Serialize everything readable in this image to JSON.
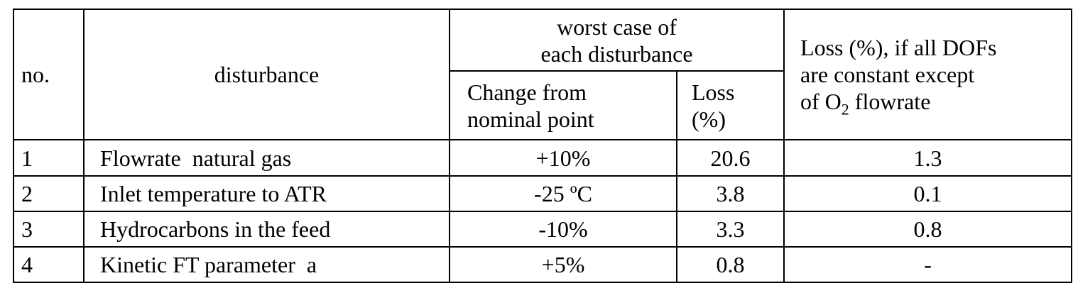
{
  "table": {
    "header": {
      "no": "no.",
      "disturbance": "disturbance",
      "worst_case": [
        "worst case of",
        "each disturbance"
      ],
      "change": [
        "Change from",
        "nominal point"
      ],
      "loss": [
        "Loss",
        "(%)"
      ],
      "loss_all": {
        "lines": [
          "Loss (%), if all DOFs",
          "are constant except"
        ],
        "last_pre": "of O",
        "last_sub": "2",
        "last_post": " flowrate"
      }
    },
    "rows": [
      [
        "1",
        "Flowrate  natural gas",
        "+10%",
        "20.6",
        "1.3"
      ],
      [
        "2",
        "Inlet temperature to ATR",
        "-25 ºC",
        "3.8",
        "0.1"
      ],
      [
        "3",
        "Hydrocarbons in the feed",
        "-10%",
        "3.3",
        "0.8"
      ],
      [
        "4",
        "Kinetic FT parameter  a",
        "+5%",
        "0.8",
        "-"
      ]
    ]
  }
}
